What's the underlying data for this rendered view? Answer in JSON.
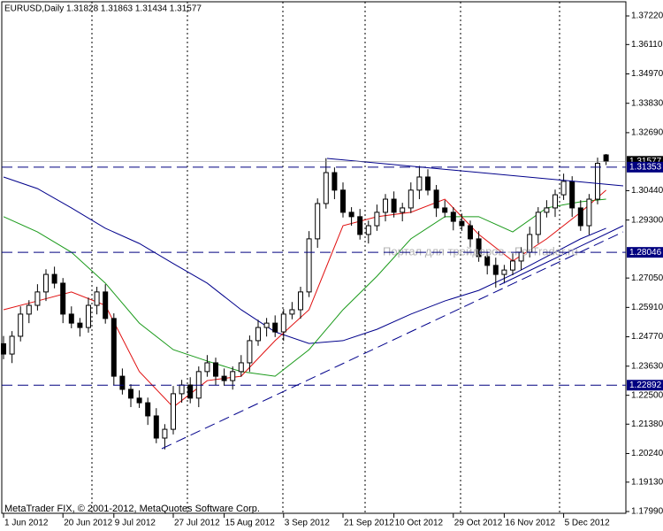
{
  "chart_data": {
    "type": "candlestick",
    "title": "EURUSD,Daily 1.31828 1.31863 1.31434 1.31577",
    "watermark": "Портал для трейдеров - ForTrader.ru",
    "footer": "MetaTrader FIX, © 2001-2012, MetaQuotes Software Corp.",
    "categories": [
      "1 Jun 2012",
      null,
      null,
      null,
      null,
      null,
      null,
      "20 Jun 2012",
      null,
      null,
      null,
      null,
      null,
      "9 Jul 2012",
      null,
      null,
      null,
      null,
      null,
      null,
      "27 Jul 2012",
      null,
      null,
      null,
      null,
      null,
      "15 Aug 2012",
      null,
      null,
      null,
      null,
      null,
      null,
      "3 Sep 2012",
      null,
      null,
      null,
      null,
      null,
      null,
      "21 Sep 2012",
      null,
      null,
      null,
      null,
      null,
      "10 Oct 2012",
      null,
      null,
      null,
      null,
      null,
      null,
      "29 Oct 2012",
      null,
      null,
      null,
      null,
      null,
      "16 Nov 2012",
      null,
      null,
      null,
      null,
      null,
      null,
      "5 Dec 2012",
      null,
      null,
      null,
      null,
      null
    ],
    "candles": {
      "open": [
        1.245,
        1.241,
        1.2479,
        1.2565,
        1.2599,
        1.2651,
        1.2719,
        1.2685,
        1.2565,
        1.253,
        1.2513,
        1.2599,
        1.2651,
        1.2548,
        1.2324,
        1.2273,
        1.2239,
        1.2221,
        1.217,
        1.2084,
        1.2118,
        1.2256,
        1.229,
        1.2239,
        1.2342,
        1.2376,
        1.2324,
        1.2307,
        1.2342,
        1.2376,
        1.2462,
        1.2513,
        1.253,
        1.2496,
        1.2565,
        1.2582,
        1.2651,
        1.2857,
        1.2994,
        1.3114,
        1.3046,
        1.296,
        1.2943,
        1.2874,
        1.2908,
        1.296,
        1.3011,
        1.296,
        1.2977,
        1.3046,
        1.3097,
        1.3046,
        1.2977,
        1.296,
        1.2925,
        1.2908,
        1.2857,
        1.2788,
        1.2754,
        1.2719,
        1.2736,
        1.2771,
        1.2805,
        1.2874,
        1.296,
        1.2977,
        1.3028,
        1.308,
        1.2977,
        1.2908,
        1.3011,
        1.31828
      ],
      "high": [
        1.248,
        1.2499,
        1.2595,
        1.2619,
        1.2681,
        1.2739,
        1.2749,
        1.2705,
        1.2595,
        1.255,
        1.2629,
        1.2671,
        1.2681,
        1.2568,
        1.2354,
        1.2293,
        1.2269,
        1.2241,
        1.22,
        1.2138,
        1.2286,
        1.231,
        1.232,
        1.2362,
        1.2406,
        1.2396,
        1.2354,
        1.2362,
        1.2406,
        1.2482,
        1.2543,
        1.255,
        1.256,
        1.2585,
        1.2612,
        1.2671,
        1.2887,
        1.3014,
        1.317,
        1.3134,
        1.3076,
        1.298,
        1.2973,
        1.2928,
        1.299,
        1.3031,
        1.3041,
        1.2997,
        1.3076,
        1.314,
        1.3127,
        1.3066,
        1.3007,
        1.298,
        1.2955,
        1.2928,
        1.2887,
        1.2808,
        1.2784,
        1.2756,
        1.2801,
        1.2825,
        1.2904,
        1.298,
        1.3007,
        1.3048,
        1.311,
        1.31,
        1.3007,
        1.3031,
        1.3172,
        1.31863
      ],
      "low": [
        1.239,
        1.2375,
        1.2459,
        1.253,
        1.2579,
        1.2616,
        1.2665,
        1.253,
        1.251,
        1.2478,
        1.2493,
        1.2564,
        1.2528,
        1.2289,
        1.2253,
        1.2204,
        1.2201,
        1.2135,
        1.2064,
        1.204,
        1.2098,
        1.2221,
        1.2219,
        1.2204,
        1.2322,
        1.2289,
        1.2287,
        1.2272,
        1.2322,
        1.2341,
        1.2442,
        1.2478,
        1.2476,
        1.2461,
        1.2545,
        1.2547,
        1.2631,
        1.2822,
        1.2974,
        1.3011,
        1.294,
        1.2908,
        1.2854,
        1.2839,
        1.2888,
        1.2925,
        1.294,
        1.2925,
        1.2957,
        1.3011,
        1.3026,
        1.2942,
        1.294,
        1.289,
        1.2888,
        1.2822,
        1.2768,
        1.2719,
        1.2668,
        1.2684,
        1.2716,
        1.2736,
        1.2785,
        1.2839,
        1.294,
        1.2942,
        1.3008,
        1.2942,
        1.2888,
        1.2873,
        1.2991,
        1.31434
      ],
      "close": [
        1.241,
        1.2479,
        1.2565,
        1.2599,
        1.2651,
        1.2719,
        1.2685,
        1.2565,
        1.253,
        1.2513,
        1.2599,
        1.2651,
        1.2548,
        1.2324,
        1.2273,
        1.2239,
        1.2221,
        1.217,
        1.2084,
        1.2118,
        1.2256,
        1.229,
        1.2239,
        1.2342,
        1.2376,
        1.2324,
        1.2307,
        1.2342,
        1.2376,
        1.2462,
        1.2513,
        1.253,
        1.2496,
        1.2565,
        1.2582,
        1.2651,
        1.2857,
        1.2994,
        1.3114,
        1.3046,
        1.296,
        1.2943,
        1.2874,
        1.2908,
        1.296,
        1.3011,
        1.296,
        1.2977,
        1.3046,
        1.3097,
        1.3046,
        1.2977,
        1.296,
        1.2925,
        1.2908,
        1.2857,
        1.2788,
        1.2754,
        1.2719,
        1.2736,
        1.2771,
        1.2805,
        1.2874,
        1.296,
        1.2977,
        1.3028,
        1.308,
        1.2977,
        1.2908,
        1.3011,
        1.315,
        1.31577
      ],
      "up_color": "#ffffff",
      "down_color": "#000000"
    },
    "series": [
      {
        "color": "#00008b",
        "x": [
          0,
          4,
          8,
          12,
          16,
          20,
          24,
          28,
          32,
          36,
          40,
          44,
          48,
          52,
          56,
          60,
          64,
          68,
          71
        ],
        "values": [
          1.3097,
          1.3052,
          1.2977,
          1.2898,
          1.2839,
          1.2761,
          1.2685,
          1.2582,
          1.2496,
          1.2451,
          1.2462,
          1.2506,
          1.2565,
          1.2616,
          1.2657,
          1.2719,
          1.2788,
          1.2857,
          1.2898
        ]
      },
      {
        "color": "#1a9a1a",
        "x": [
          0,
          4,
          8,
          12,
          16,
          20,
          24,
          28,
          32,
          36,
          40,
          44,
          48,
          52,
          56,
          60,
          64,
          68,
          71
        ],
        "values": [
          1.2943,
          1.2884,
          1.2805,
          1.2685,
          1.253,
          1.2427,
          1.2383,
          1.2342,
          1.2324,
          1.2427,
          1.2582,
          1.2712,
          1.2857,
          1.2943,
          1.2943,
          1.2884,
          1.2977,
          1.3001,
          1.3011
        ]
      },
      {
        "color": "#e01010",
        "x": [
          0,
          4,
          8,
          12,
          16,
          20,
          24,
          28,
          32,
          36,
          40,
          44,
          48,
          52,
          56,
          60,
          64,
          68,
          71
        ],
        "values": [
          1.2582,
          1.2616,
          1.2651,
          1.2599,
          1.2342,
          1.2204,
          1.2307,
          1.2324,
          1.2462,
          1.2582,
          1.2908,
          1.2943,
          1.296,
          1.3011,
          1.2874,
          1.2771,
          1.2857,
          1.296,
          1.3046
        ]
      }
    ],
    "levels": [
      {
        "value": 1.31353,
        "color": "#000080"
      },
      {
        "value": 1.28046,
        "color": "#000080"
      },
      {
        "value": 1.22892,
        "color": "#000080"
      }
    ],
    "ylim": [
      1.17921,
      1.37769
    ],
    "yticks": [
      {
        "value": 1.3722,
        "label": "1.37220"
      },
      {
        "value": 1.3611,
        "label": "1.36110"
      },
      {
        "value": 1.3497,
        "label": "1.34970"
      },
      {
        "value": 1.3383,
        "label": "1.33830"
      },
      {
        "value": 1.3269,
        "label": "1.32690"
      },
      {
        "value": 1.3044,
        "label": "1.30440"
      },
      {
        "value": 1.293,
        "label": "1.29300"
      },
      {
        "value": 1.2705,
        "label": "1.27050"
      },
      {
        "value": 1.2591,
        "label": "1.25910"
      },
      {
        "value": 1.2477,
        "label": "1.24770"
      },
      {
        "value": 1.2363,
        "label": "1.23630"
      },
      {
        "value": 1.225,
        "label": "1.22500"
      },
      {
        "value": 1.2138,
        "label": "1.21380"
      },
      {
        "value": 1.2024,
        "label": "1.20240"
      },
      {
        "value": 1.1913,
        "label": "1.19130"
      },
      {
        "value": 1.1799,
        "label": "1.17990"
      }
    ]
  }
}
